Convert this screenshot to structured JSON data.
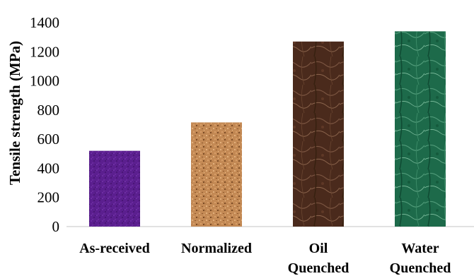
{
  "chart_data": {
    "type": "bar",
    "title": "",
    "xlabel": "",
    "ylabel": "Tensile strength (MPa)",
    "ylim": [
      0,
      1400
    ],
    "yticks": [
      0,
      200,
      400,
      600,
      800,
      1000,
      1200,
      1400
    ],
    "grid": false,
    "legend": "none",
    "categories": [
      [
        "As-received"
      ],
      [
        "Normalized"
      ],
      [
        "Oil",
        "Quenched"
      ],
      [
        "Water",
        "Quenched"
      ]
    ],
    "values": [
      520,
      715,
      1270,
      1340
    ],
    "colors": [
      "#5b1f8f",
      "#c48a55",
      "#4a2a1c",
      "#1d6a4a"
    ],
    "textures": [
      "purple-fabric",
      "cork",
      "brown-marble",
      "green-marble"
    ]
  }
}
